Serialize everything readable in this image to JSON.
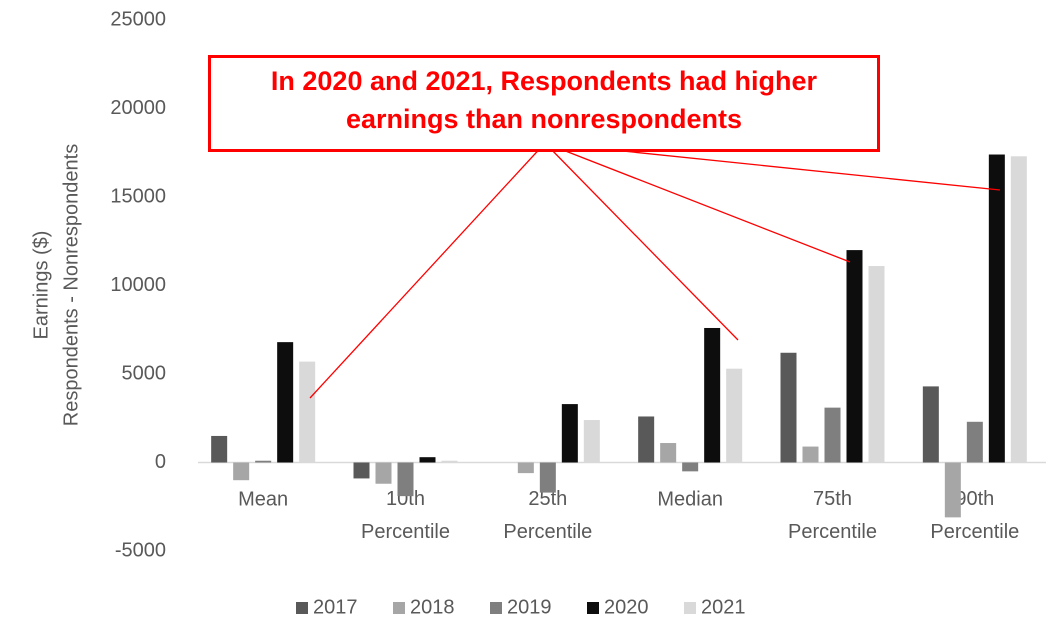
{
  "chart_data": {
    "type": "bar",
    "annotation": "In 2020 and 2021, Respondents had higher earnings than nonrespondents",
    "y_label": [
      "Earnings ($)",
      "Respondents - Nonrespondents"
    ],
    "categories": [
      "Mean",
      "10th Percentile",
      "25th Percentile",
      "Median",
      "75th Percentile",
      "90th Percentile"
    ],
    "series": [
      {
        "name": "2017",
        "color": "#595959",
        "values": [
          1500,
          -900,
          0,
          2600,
          6200,
          4300
        ]
      },
      {
        "name": "2018",
        "color": "#a6a6a6",
        "values": [
          -1000,
          -1200,
          -600,
          1100,
          900,
          -3100
        ]
      },
      {
        "name": "2019",
        "color": "#7f7f7f",
        "values": [
          100,
          -1900,
          -1700,
          -500,
          3100,
          2300
        ]
      },
      {
        "name": "2020",
        "color": "#0d0d0d",
        "values": [
          6800,
          300,
          3300,
          7600,
          12000,
          17400
        ]
      },
      {
        "name": "2021",
        "color": "#d9d9d9",
        "values": [
          5700,
          100,
          2400,
          5300,
          11100,
          17300
        ]
      }
    ],
    "ylim": [
      -5000,
      25000
    ],
    "yticks": [
      -5000,
      0,
      5000,
      10000,
      15000,
      20000,
      25000
    ],
    "grid": false,
    "legend": "bottom"
  }
}
